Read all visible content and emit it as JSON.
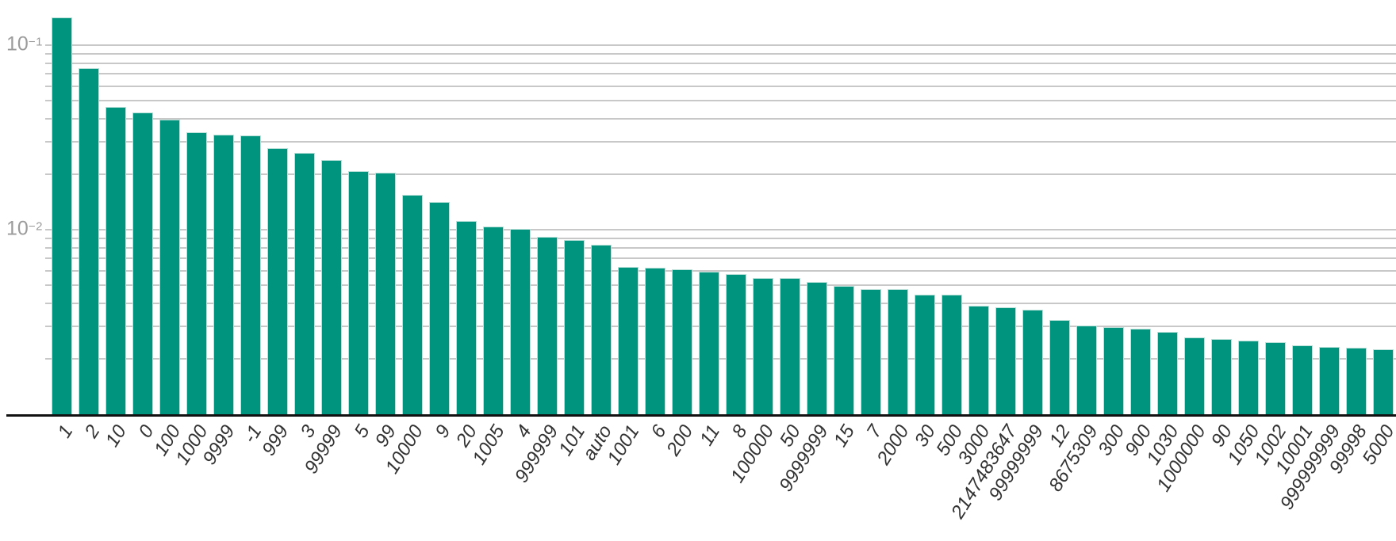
{
  "chart_data": {
    "type": "bar",
    "title": "",
    "xlabel": "",
    "ylabel": "",
    "scale": "log-y",
    "ylim": [
      0.001,
      0.16
    ],
    "grid": true,
    "legend": "none",
    "bar_color": "#00947f",
    "bar_edge_color": "#b9e0d8",
    "grid_color": "#c8c8c8",
    "axis_color": "#111111",
    "tick_label_color": "#9b9b9b",
    "x_label_color": "#333333",
    "y_ticks": [
      {
        "base": "10",
        "exp": "−1",
        "value": 0.1
      },
      {
        "base": "10",
        "exp": "−2",
        "value": 0.01
      }
    ],
    "categories": [
      "1",
      "2",
      "10",
      "0",
      "100",
      "1000",
      "9999",
      "-1",
      "999",
      "3",
      "99999",
      "5",
      "99",
      "10000",
      "9",
      "20",
      "1005",
      "4",
      "999999",
      "101",
      "auto",
      "1001",
      "6",
      "200",
      "11",
      "8",
      "100000",
      "50",
      "9999999",
      "15",
      "7",
      "2000",
      "30",
      "500",
      "3000",
      "2147483647",
      "99999999",
      "12",
      "8675309",
      "300",
      "900",
      "1030",
      "1000000",
      "90",
      "1050",
      "1002",
      "10001",
      "999999999",
      "99998",
      "5000"
    ],
    "values": [
      0.142,
      0.0753,
      0.0464,
      0.0434,
      0.0397,
      0.0339,
      0.0328,
      0.0326,
      0.0276,
      0.0262,
      0.0238,
      0.0207,
      0.0203,
      0.0154,
      0.0141,
      0.0112,
      0.0104,
      0.0101,
      0.00915,
      0.00882,
      0.00828,
      0.00626,
      0.0062,
      0.0061,
      0.0059,
      0.00575,
      0.00548,
      0.00545,
      0.00521,
      0.00497,
      0.00477,
      0.00476,
      0.00444,
      0.00444,
      0.00387,
      0.00379,
      0.00367,
      0.00324,
      0.00302,
      0.00296,
      0.0029,
      0.00278,
      0.0026,
      0.00254,
      0.00251,
      0.00246,
      0.00236,
      0.00231,
      0.00228,
      0.00225
    ]
  }
}
